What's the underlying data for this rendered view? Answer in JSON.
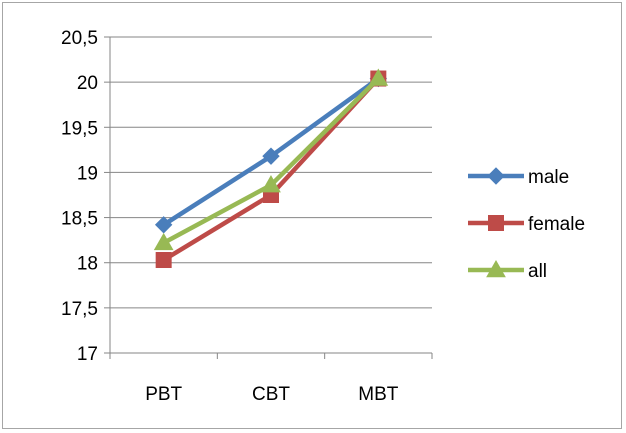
{
  "chart_data": {
    "type": "line",
    "categories": [
      "PBT",
      "CBT",
      "MBT"
    ],
    "y_tick_labels": [
      "17",
      "17,5",
      "18",
      "18,5",
      "19",
      "19,5",
      "20",
      "20,5"
    ],
    "ylim": [
      17,
      20.5
    ],
    "grid": true,
    "legend_position": "right",
    "series": [
      {
        "name": "male",
        "values": [
          18.42,
          19.18,
          20.04
        ],
        "color": "#4a7ebb",
        "marker": "diamond"
      },
      {
        "name": "female",
        "values": [
          18.03,
          18.75,
          20.04
        ],
        "color": "#be4b48",
        "marker": "square"
      },
      {
        "name": "all",
        "values": [
          18.22,
          18.86,
          20.04
        ],
        "color": "#98b954",
        "marker": "triangle"
      }
    ]
  }
}
